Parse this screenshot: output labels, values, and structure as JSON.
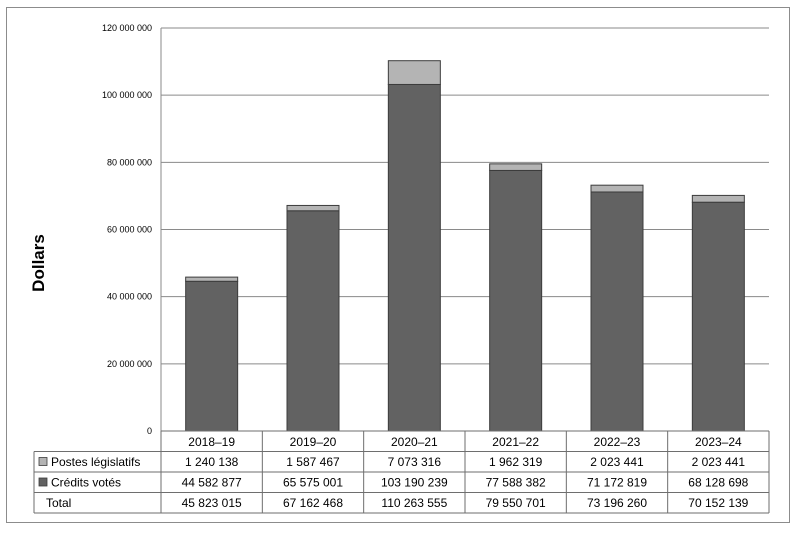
{
  "chart_data": {
    "type": "bar",
    "stacked": true,
    "ylabel": "Dollars",
    "ylim": [
      0,
      120000000
    ],
    "yticks": [
      0,
      20000000,
      40000000,
      60000000,
      80000000,
      100000000,
      120000000
    ],
    "ytick_labels": [
      "0",
      "20 000 000",
      "40 000 000",
      "60 000 000",
      "80 000 000",
      "100 000 000",
      "120 000 000"
    ],
    "grid": true,
    "categories": [
      "2018–19",
      "2019–20",
      "2020–21",
      "2021–22",
      "2022–23",
      "2023–24"
    ],
    "series": [
      {
        "name": "Crédits votés",
        "color": "#626262",
        "values": [
          44582877,
          65575001,
          103190239,
          77588382,
          71172819,
          68128698
        ],
        "labels": [
          "44 582 877",
          "65 575 001",
          "103 190 239",
          "77 588 382",
          "71 172 819",
          "68 128 698"
        ]
      },
      {
        "name": "Postes législatifs",
        "color": "#b4b4b4",
        "values": [
          1240138,
          1587467,
          7073316,
          1962319,
          2023441,
          2023441
        ],
        "labels": [
          "1 240 138",
          "1 587 467",
          "7 073 316",
          "1 962 319",
          "2 023 441",
          "2 023 441"
        ]
      }
    ],
    "total": {
      "name": "Total",
      "labels": [
        "45 823 015",
        "67 162 468",
        "110 263 555",
        "79 550 701",
        "73 196 260",
        "70 152 139"
      ]
    },
    "table_rows": [
      "Postes législatifs",
      "Crédits votés",
      "Total"
    ]
  }
}
